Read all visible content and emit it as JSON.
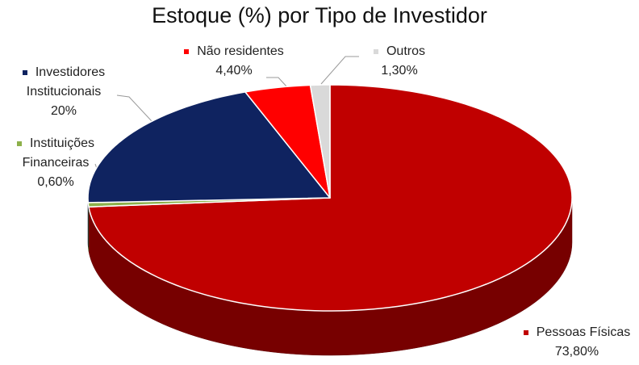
{
  "chart_data": {
    "type": "pie",
    "title": "Estoque (%) por Tipo de Investidor",
    "categories": [
      "Pessoas Físicas",
      "Instituições Financeiras",
      "Investidores Institucionais",
      "Não residentes",
      "Outros"
    ],
    "values": [
      73.8,
      0.6,
      20,
      4.4,
      1.3
    ],
    "value_labels": [
      "73,80%",
      "0,60%",
      "20%",
      "4,40%",
      "1,30%"
    ],
    "colors": [
      "#c00000",
      "#8db04a",
      "#0f2360",
      "#ff0000",
      "#d9d9d9"
    ]
  }
}
